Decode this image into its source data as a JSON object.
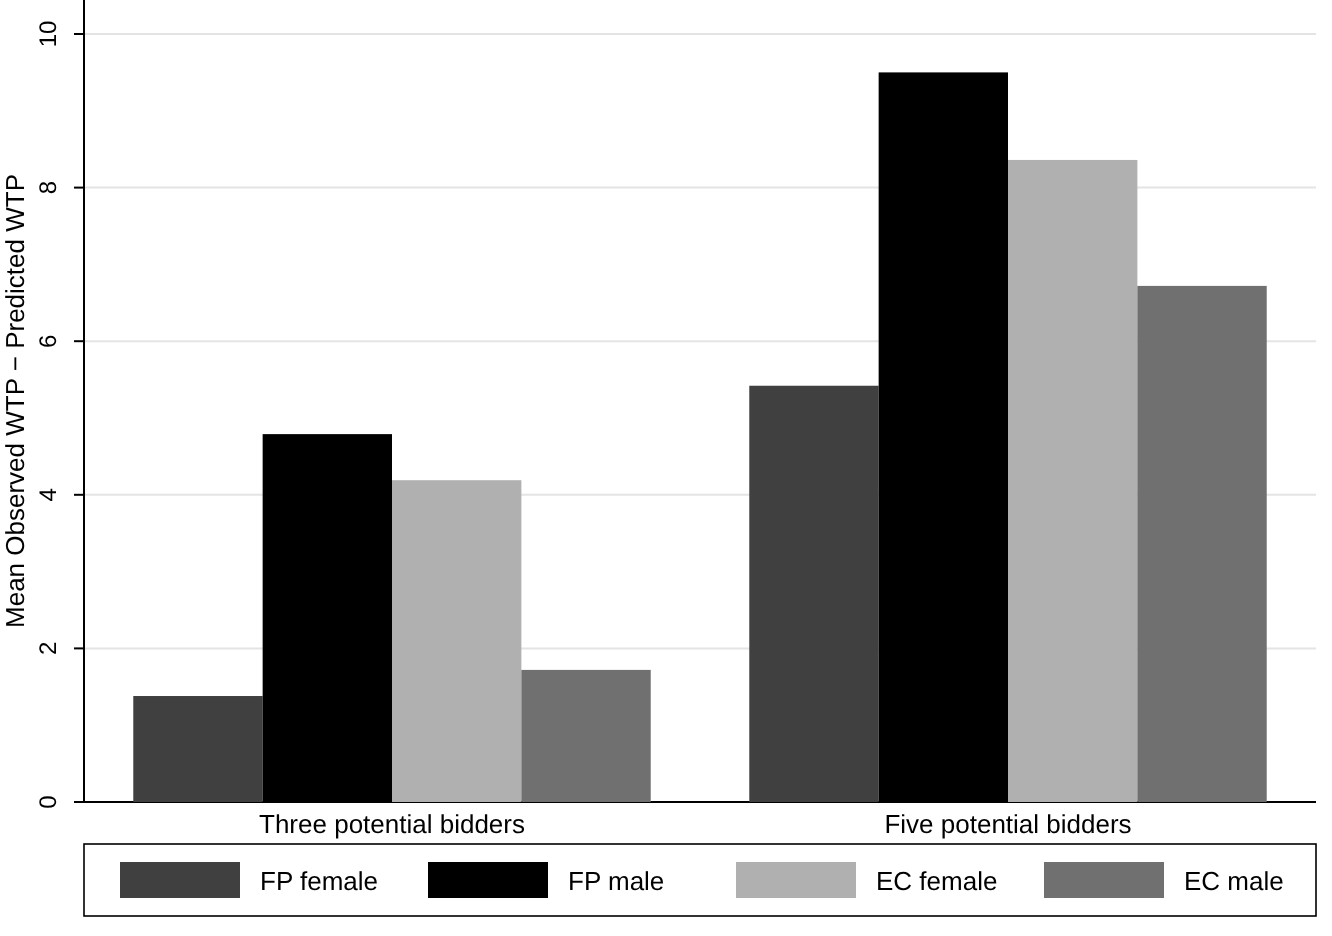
{
  "chart_data": {
    "type": "bar",
    "categories": [
      "Three potential bidders",
      "Five potential bidders"
    ],
    "ylabel": "Mean Observed WTP − Predicted WTP",
    "ylim": [
      0,
      10
    ],
    "yticks": [
      0,
      2,
      4,
      6,
      8,
      10
    ],
    "grid": "y",
    "legend": "bottom",
    "series": [
      {
        "name": "FP female",
        "color": "#404040",
        "values": [
          1.38,
          5.42
        ]
      },
      {
        "name": "FP male",
        "color": "#000000",
        "values": [
          4.79,
          9.5
        ]
      },
      {
        "name": "EC female",
        "color": "#b0b0b0",
        "values": [
          4.19,
          8.36
        ]
      },
      {
        "name": "EC male",
        "color": "#707070",
        "values": [
          1.72,
          6.72
        ]
      }
    ]
  }
}
